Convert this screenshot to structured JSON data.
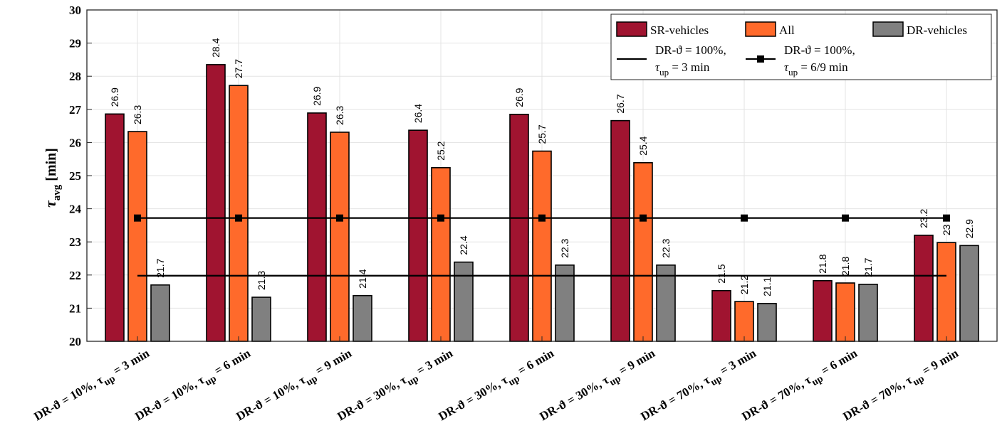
{
  "chart_data": {
    "type": "bar",
    "categories": [
      {
        "pre": "DR-ϑ = 10%, ",
        "tau": "τ",
        "sub": "up",
        "post": " = 3 min"
      },
      {
        "pre": "DR-ϑ = 10%, ",
        "tau": "τ",
        "sub": "up",
        "post": " = 6 min"
      },
      {
        "pre": "DR-ϑ = 10%, ",
        "tau": "τ",
        "sub": "up",
        "post": " = 9 min"
      },
      {
        "pre": "DR-ϑ = 30%, ",
        "tau": "τ",
        "sub": "up",
        "post": " = 3 min"
      },
      {
        "pre": "DR-ϑ = 30%, ",
        "tau": "τ",
        "sub": "up",
        "post": " = 6 min"
      },
      {
        "pre": "DR-ϑ = 30%, ",
        "tau": "τ",
        "sub": "up",
        "post": " = 9 min"
      },
      {
        "pre": "DR-ϑ = 70%, ",
        "tau": "τ",
        "sub": "up",
        "post": " = 3 min"
      },
      {
        "pre": "DR-ϑ = 70%, ",
        "tau": "τ",
        "sub": "up",
        "post": " = 6 min"
      },
      {
        "pre": "DR-ϑ = 70%, ",
        "tau": "τ",
        "sub": "up",
        "post": " = 9 min"
      }
    ],
    "series": [
      {
        "name": "SR-vehicles",
        "color": "#a01430",
        "values": [
          26.86,
          28.35,
          26.89,
          26.37,
          26.85,
          26.66,
          21.53,
          21.83,
          23.2
        ],
        "labels": [
          "26.9",
          "28.4",
          "26.9",
          "26.4",
          "26.9",
          "26.7",
          "21.5",
          "21.8",
          "23.2"
        ]
      },
      {
        "name": "All",
        "color": "#ff6a2b",
        "values": [
          26.33,
          27.72,
          26.31,
          25.24,
          25.74,
          25.39,
          21.2,
          21.76,
          22.98
        ],
        "labels": [
          "26.3",
          "27.7",
          "26.3",
          "25.2",
          "25.7",
          "25.4",
          "21.2",
          "21.8",
          "23"
        ]
      },
      {
        "name": "DR-vehicles",
        "color": "#808080",
        "values": [
          21.7,
          21.33,
          21.38,
          22.39,
          22.3,
          22.3,
          21.14,
          21.72,
          22.89
        ],
        "labels": [
          "21.7",
          "21.3",
          "21.4",
          "22.4",
          "22.3",
          "22.3",
          "21.1",
          "21.7",
          "22.9"
        ]
      }
    ],
    "reference_lines": [
      {
        "name_line1": "DR-ϑ = 100%,",
        "tau": "τ",
        "sub": "up",
        "post": " = 3 min",
        "value": 21.98,
        "marker": "none",
        "x_start_index": 0,
        "x_end_index": 8
      },
      {
        "name_line1": "DR-ϑ = 100%,",
        "tau": "τ",
        "sub": "up",
        "post": " = 6/9 min",
        "value": 23.72,
        "marker": "square",
        "x_start_index": 0,
        "x_end_index": 8
      }
    ],
    "ylabel": {
      "main": "τ",
      "sub": "avg",
      "unit": " [min]"
    },
    "xlabel": "",
    "title": "",
    "ylim": [
      20,
      30
    ],
    "yticks": [
      20,
      21,
      22,
      23,
      24,
      25,
      26,
      27,
      28,
      29,
      30
    ],
    "grid": true,
    "legend_position": "top-right"
  }
}
